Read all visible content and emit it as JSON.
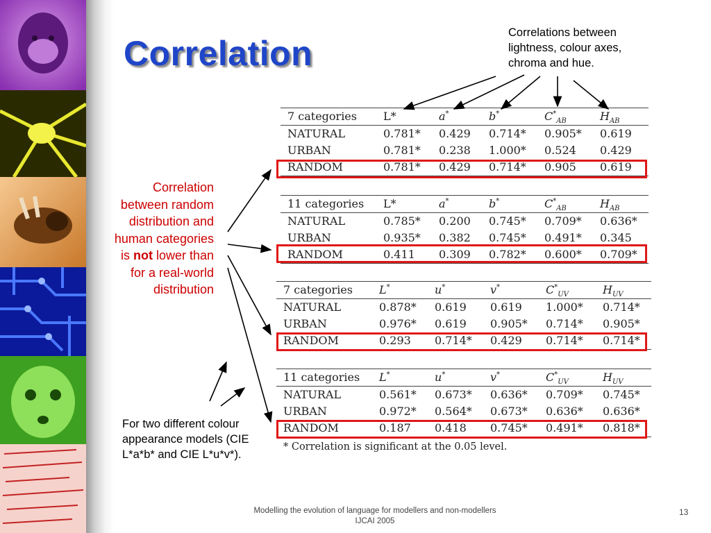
{
  "slide": {
    "title": "Correlation",
    "note_top": "Correlations between lightness, colour axes, chroma and hue.",
    "note_left": {
      "before": "Correlation between random distribution and human categories is ",
      "emph": "not",
      "after": " lower than for a real-world distribution"
    },
    "note_bottom": "For two different colour appearance models (CIE L*a*b* and CIE L*u*v*).",
    "footnote": "* Correlation is significant at the 0.05 level.",
    "footer_line1": "Modelling the evolution of language for modellers and non-modellers",
    "footer_line2": "IJCAI 2005",
    "page_number": "13"
  },
  "tables": [
    {
      "label": "7 categories",
      "headers": [
        "L*",
        "a*",
        "b*",
        "C*AB",
        "HAB"
      ],
      "rows": [
        {
          "name": "NATURAL",
          "values": [
            "0.781*",
            "0.429",
            "0.714*",
            "0.905*",
            "0.619"
          ]
        },
        {
          "name": "URBAN",
          "values": [
            "0.781*",
            "0.238",
            "1.000*",
            "0.524",
            "0.429"
          ]
        },
        {
          "name": "RANDOM",
          "values": [
            "0.781*",
            "0.429",
            "0.714*",
            "0.905",
            "0.619"
          ]
        }
      ]
    },
    {
      "label": "11 categories",
      "headers": [
        "L*",
        "a*",
        "b*",
        "C*AB",
        "HAB"
      ],
      "rows": [
        {
          "name": "NATURAL",
          "values": [
            "0.785*",
            "0.200",
            "0.745*",
            "0.709*",
            "0.636*"
          ]
        },
        {
          "name": "URBAN",
          "values": [
            "0.935*",
            "0.382",
            "0.745*",
            "0.491*",
            "0.345"
          ]
        },
        {
          "name": "RANDOM",
          "values": [
            "0.411",
            "0.309",
            "0.782*",
            "0.600*",
            "0.709*"
          ]
        }
      ]
    },
    {
      "label": "7 categories",
      "headers": [
        "L*",
        "u*",
        "v*",
        "C*UV",
        "HUV"
      ],
      "rows": [
        {
          "name": "NATURAL",
          "values": [
            "0.878*",
            "0.619",
            "0.619",
            "1.000*",
            "0.714*"
          ]
        },
        {
          "name": "URBAN",
          "values": [
            "0.976*",
            "0.619",
            "0.905*",
            "0.714*",
            "0.905*"
          ]
        },
        {
          "name": "RANDOM",
          "values": [
            "0.293",
            "0.714*",
            "0.429",
            "0.714*",
            "0.714*"
          ]
        }
      ]
    },
    {
      "label": "11 categories",
      "headers": [
        "L*",
        "u*",
        "v*",
        "C*UV",
        "HUV"
      ],
      "rows": [
        {
          "name": "NATURAL",
          "values": [
            "0.561*",
            "0.673*",
            "0.636*",
            "0.709*",
            "0.745*"
          ]
        },
        {
          "name": "URBAN",
          "values": [
            "0.972*",
            "0.564*",
            "0.673*",
            "0.636*",
            "0.636*"
          ]
        },
        {
          "name": "RANDOM",
          "values": [
            "0.187",
            "0.418",
            "0.745*",
            "0.491*",
            "0.818*"
          ]
        }
      ]
    }
  ],
  "colors": {
    "title": "#1f45c8",
    "highlight_box": "#e01818",
    "note_left_text": "#cc0000"
  }
}
